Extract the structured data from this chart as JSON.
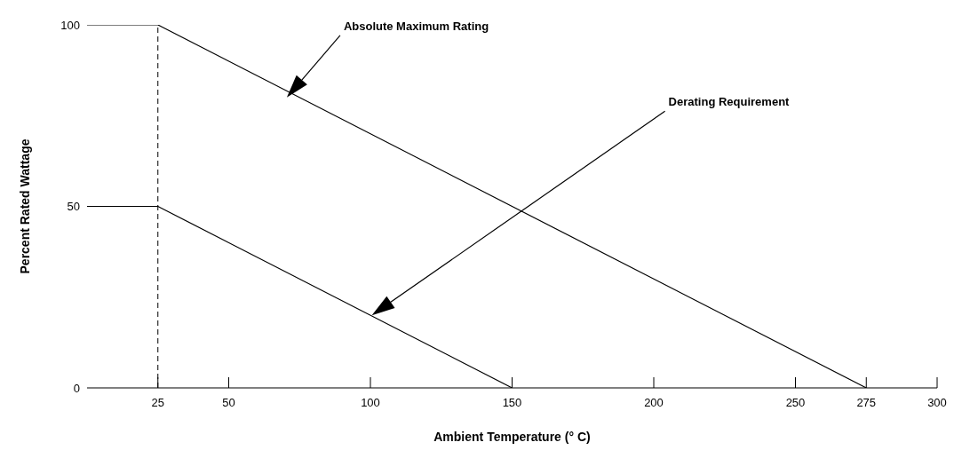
{
  "chart_data": {
    "type": "line",
    "xlabel": "Ambient Temperature (° C)",
    "ylabel": "Percent Rated Wattage",
    "xlim": [
      0,
      300
    ],
    "xticks": [
      25,
      50,
      100,
      150,
      200,
      250,
      275,
      300
    ],
    "ylim": [
      0,
      100
    ],
    "yticks": [
      0,
      50,
      100
    ],
    "series": [
      {
        "color": "#000000",
        "x": [
          0,
          25,
          275
        ],
        "values": [
          100,
          100,
          0
        ]
      },
      {
        "color": "#000000",
        "x": [
          0,
          25,
          150
        ],
        "values": [
          50,
          50,
          0
        ]
      }
    ],
    "ref_lines": [
      {
        "axis": "x",
        "value": 25,
        "color": "#000000",
        "line_style": "dashed"
      }
    ],
    "annotations": [
      "Absolute Maximum Rating",
      "Derating Requirement"
    ]
  }
}
